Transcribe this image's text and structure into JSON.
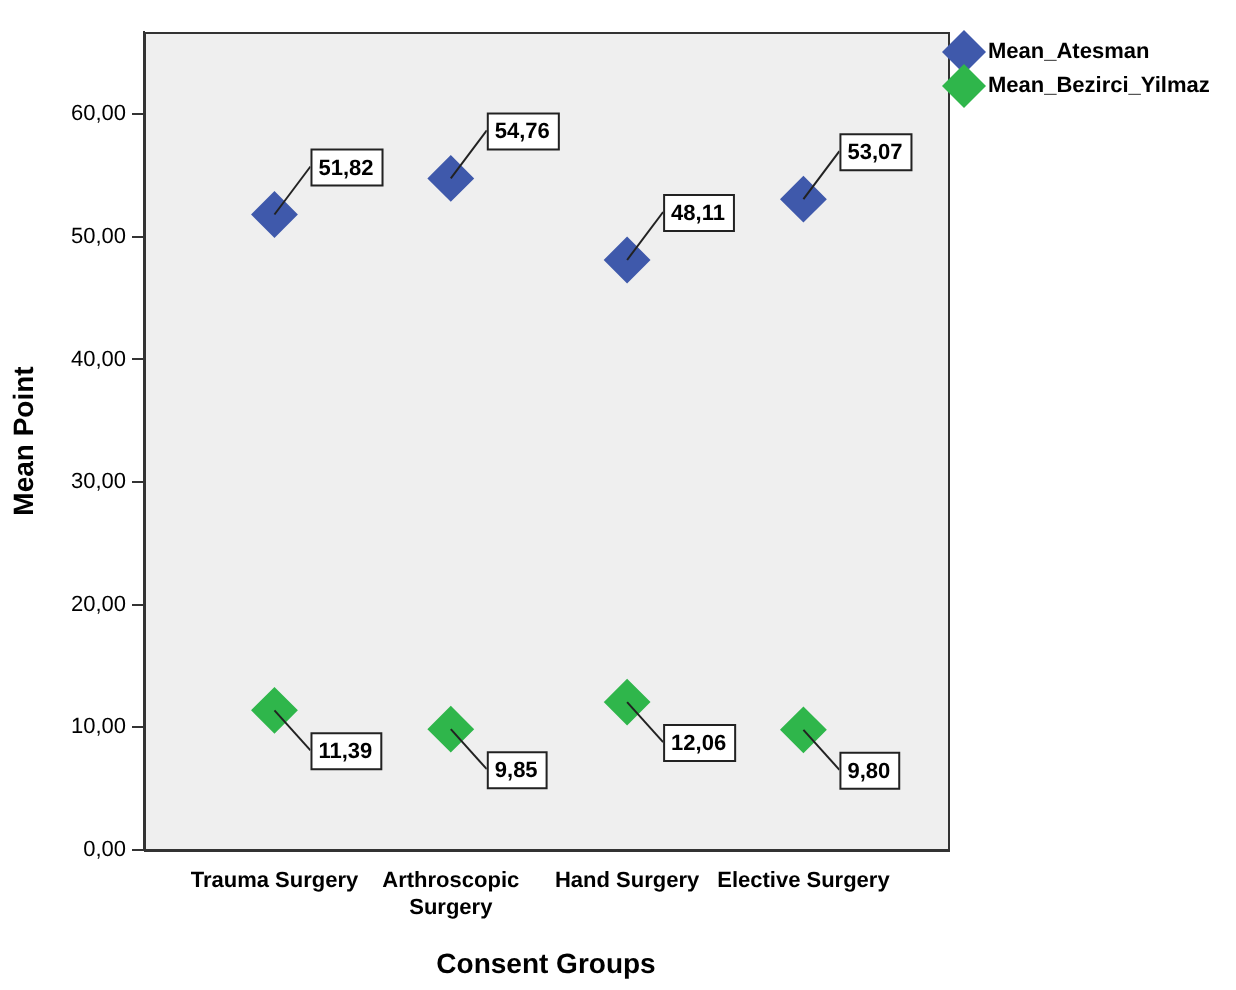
{
  "chart_data": {
    "type": "scatter",
    "xlabel": "Consent Groups",
    "ylabel": "Mean Point",
    "categories": [
      "Trauma Surgery",
      "Arthroscopic Surgery",
      "Hand Surgery",
      "Elective Surgery"
    ],
    "series": [
      {
        "name": "Mean_Atesman",
        "color": "#3f59ab",
        "values": [
          51.82,
          54.76,
          48.11,
          53.07
        ],
        "value_labels": [
          "51,82",
          "54,76",
          "48,11",
          "53,07"
        ]
      },
      {
        "name": "Mean_Bezirci_Yilmaz",
        "color": "#2fb64b",
        "values": [
          11.39,
          9.85,
          12.06,
          9.8
        ],
        "value_labels": [
          "11,39",
          "9,85",
          "12,06",
          "9,80"
        ]
      }
    ],
    "ylim": [
      0,
      66.7
    ],
    "yticks": [
      {
        "value": 0,
        "label": "0,00"
      },
      {
        "value": 10,
        "label": "10,00"
      },
      {
        "value": 20,
        "label": "20,00"
      },
      {
        "value": 30,
        "label": "30,00"
      },
      {
        "value": 40,
        "label": "40,00"
      },
      {
        "value": 50,
        "label": "50,00"
      },
      {
        "value": 60,
        "label": "60,00"
      }
    ],
    "marker": "diamond",
    "grid": false,
    "legend": "top right"
  }
}
